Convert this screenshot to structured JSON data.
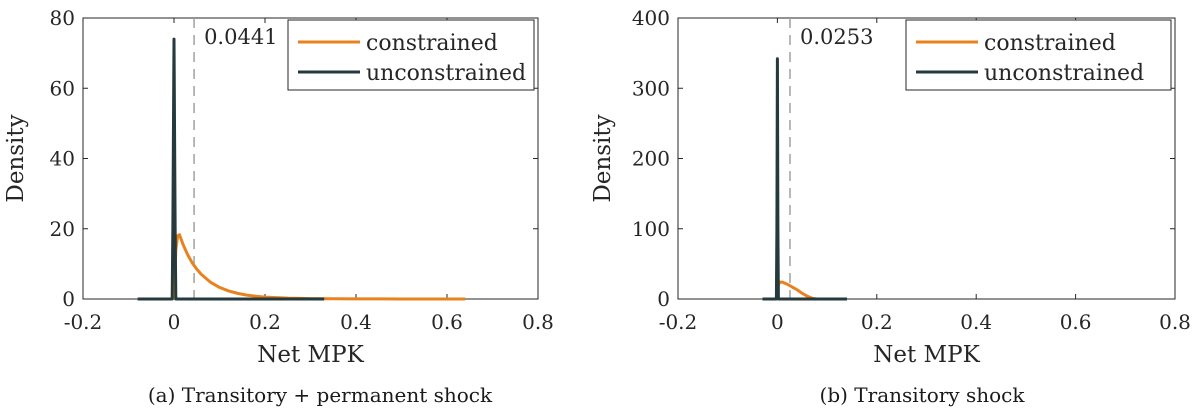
{
  "chart_data": [
    {
      "type": "line",
      "caption": "(a) Transitory + permanent shock",
      "xlabel": "Net MPK",
      "ylabel": "Density",
      "xlim": [
        -0.2,
        0.8
      ],
      "ylim": [
        0,
        80
      ],
      "xticks": [
        -0.2,
        0,
        0.2,
        0.4,
        0.6,
        0.8
      ],
      "xtick_labels": [
        "-0.2",
        "0",
        "0.2",
        "0.4",
        "0.6",
        "0.8"
      ],
      "yticks": [
        0,
        20,
        40,
        60,
        80
      ],
      "ytick_labels": [
        "0",
        "20",
        "40",
        "60",
        "80"
      ],
      "vline": {
        "x": 0.0441,
        "label": "0.0441",
        "style": "dashed",
        "color": "#9a9a9a"
      },
      "legend_position": "top-right",
      "series": [
        {
          "name": "constrained",
          "color": "#e8821e",
          "x": [
            0,
            0.004,
            0.008,
            0.012,
            0.02,
            0.03,
            0.04,
            0.05,
            0.06,
            0.08,
            0.1,
            0.12,
            0.14,
            0.16,
            0.18,
            0.2,
            0.25,
            0.3,
            0.35,
            0.4,
            0.5,
            0.6,
            0.64
          ],
          "y": [
            0,
            14,
            18,
            18.3,
            15.5,
            12.6,
            10.3,
            8.5,
            7.0,
            4.8,
            3.3,
            2.3,
            1.6,
            1.1,
            0.8,
            0.55,
            0.25,
            0.12,
            0.06,
            0.03,
            0.01,
            0.005,
            0
          ]
        },
        {
          "name": "unconstrained",
          "color": "#243a3c",
          "x": [
            -0.08,
            -0.004,
            -0.0025,
            0,
            0.0025,
            0.004,
            0.33
          ],
          "y": [
            0,
            0,
            20,
            74,
            20,
            0,
            0
          ]
        }
      ]
    },
    {
      "type": "line",
      "caption": "(b) Transitory shock",
      "xlabel": "Net MPK",
      "ylabel": "Density",
      "xlim": [
        -0.2,
        0.8
      ],
      "ylim": [
        0,
        400
      ],
      "xticks": [
        -0.2,
        0,
        0.2,
        0.4,
        0.6,
        0.8
      ],
      "xtick_labels": [
        "-0.2",
        "0",
        "0.2",
        "0.4",
        "0.6",
        "0.8"
      ],
      "yticks": [
        0,
        100,
        200,
        300,
        400
      ],
      "ytick_labels": [
        "0",
        "100",
        "200",
        "300",
        "400"
      ],
      "vline": {
        "x": 0.0253,
        "label": "0.0253",
        "style": "dashed",
        "color": "#9a9a9a"
      },
      "legend_position": "top-right",
      "series": [
        {
          "name": "constrained",
          "color": "#e8821e",
          "x": [
            0,
            0.002,
            0.005,
            0.01,
            0.02,
            0.03,
            0.04,
            0.05,
            0.06,
            0.07,
            0.08
          ],
          "y": [
            0,
            20,
            24,
            24,
            21,
            17,
            13,
            8,
            4,
            1,
            0
          ]
        },
        {
          "name": "unconstrained",
          "color": "#243a3c",
          "x": [
            -0.03,
            -0.002,
            -0.001,
            0,
            0.001,
            0.002,
            0.14
          ],
          "y": [
            0,
            0,
            100,
            342,
            100,
            0,
            0
          ]
        }
      ]
    }
  ]
}
